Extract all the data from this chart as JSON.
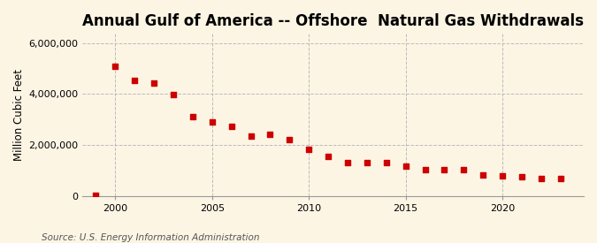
{
  "title": "Annual Gulf of America -- Offshore  Natural Gas Withdrawals",
  "ylabel": "Million Cubic Feet",
  "source": "Source: U.S. Energy Information Administration",
  "background_color": "#fdf5e4",
  "marker_color": "#cc0000",
  "years": [
    1999,
    2000,
    2001,
    2002,
    2003,
    2004,
    2005,
    2006,
    2007,
    2008,
    2009,
    2010,
    2011,
    2012,
    2013,
    2014,
    2015,
    2016,
    2017,
    2018,
    2019,
    2020,
    2021,
    2022,
    2023
  ],
  "values": [
    30000,
    5100000,
    4550000,
    4450000,
    3980000,
    3130000,
    2900000,
    2720000,
    2350000,
    2430000,
    2200000,
    1840000,
    1560000,
    1320000,
    1300000,
    1310000,
    1180000,
    1030000,
    1020000,
    1040000,
    820000,
    780000,
    760000,
    700000,
    670000
  ],
  "xlim": [
    1998.3,
    2024.2
  ],
  "ylim": [
    0,
    6400000
  ],
  "yticks": [
    0,
    2000000,
    4000000,
    6000000
  ],
  "xticks": [
    2000,
    2005,
    2010,
    2015,
    2020
  ],
  "grid_color": "#bbbbbb",
  "title_fontsize": 12,
  "label_fontsize": 8.5,
  "tick_fontsize": 8,
  "source_fontsize": 7.5
}
